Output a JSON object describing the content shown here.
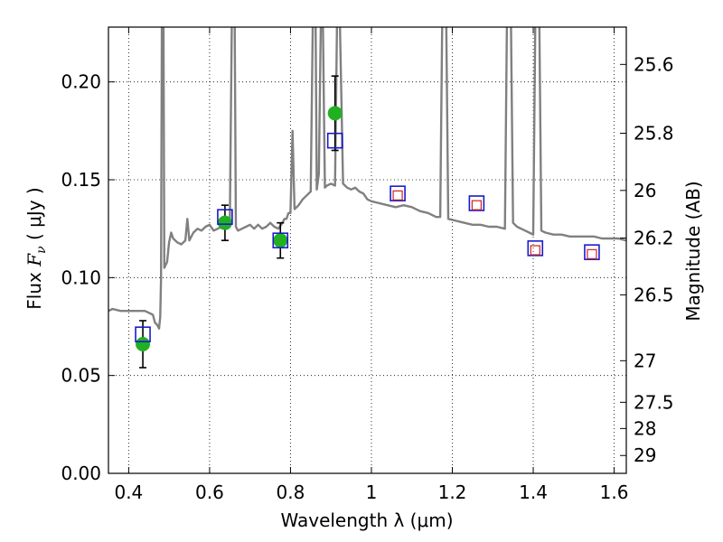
{
  "chart_data": {
    "type": "scatter",
    "xlabel": "Wavelength  λ (μm)",
    "ylabel_prefix": "Flux  ",
    "ylabel_symbol": "F",
    "ylabel_sub": "ν",
    "ylabel_suffix": "  ( μJy )",
    "y2label": "Magnitude (AB)",
    "xlim": [
      0.35,
      1.63
    ],
    "ylim": [
      0.0,
      0.228
    ],
    "grid": true,
    "x_ticks": [
      {
        "value": 0.4,
        "label": "0.4"
      },
      {
        "value": 0.6,
        "label": "0.6"
      },
      {
        "value": 0.8,
        "label": "0.8"
      },
      {
        "value": 1.0,
        "label": "1"
      },
      {
        "value": 1.2,
        "label": "1.2"
      },
      {
        "value": 1.4,
        "label": "1.4"
      },
      {
        "value": 1.6,
        "label": "1.6"
      }
    ],
    "y_ticks": [
      {
        "value": 0.0,
        "label": "0.00"
      },
      {
        "value": 0.05,
        "label": "0.05"
      },
      {
        "value": 0.1,
        "label": "0.10"
      },
      {
        "value": 0.15,
        "label": "0.15"
      },
      {
        "value": 0.2,
        "label": "0.20"
      }
    ],
    "mag_ticks": [
      {
        "mag": 25.6,
        "label": "25.6"
      },
      {
        "mag": 25.8,
        "label": "25.8"
      },
      {
        "mag": 26.0,
        "label": "26"
      },
      {
        "mag": 26.2,
        "label": "26.2"
      },
      {
        "mag": 26.5,
        "label": "26.5"
      },
      {
        "mag": 27.0,
        "label": "27"
      },
      {
        "mag": 27.5,
        "label": "27.5"
      },
      {
        "mag": 28.0,
        "label": "28"
      },
      {
        "mag": 29.0,
        "label": "29"
      }
    ],
    "sed_model": {
      "color": "#808080",
      "points": [
        [
          0.35,
          0.083
        ],
        [
          0.36,
          0.084
        ],
        [
          0.38,
          0.083
        ],
        [
          0.4,
          0.083
        ],
        [
          0.42,
          0.083
        ],
        [
          0.44,
          0.083
        ],
        [
          0.45,
          0.082
        ],
        [
          0.46,
          0.081
        ],
        [
          0.465,
          0.077
        ],
        [
          0.47,
          0.076
        ],
        [
          0.475,
          0.074
        ],
        [
          0.478,
          0.08
        ],
        [
          0.48,
          0.1
        ],
        [
          0.482,
          0.23
        ],
        [
          0.486,
          0.23
        ],
        [
          0.488,
          0.105
        ],
        [
          0.495,
          0.108
        ],
        [
          0.5,
          0.118
        ],
        [
          0.505,
          0.123
        ],
        [
          0.51,
          0.12
        ],
        [
          0.52,
          0.118
        ],
        [
          0.53,
          0.117
        ],
        [
          0.54,
          0.119
        ],
        [
          0.545,
          0.13
        ],
        [
          0.55,
          0.119
        ],
        [
          0.56,
          0.123
        ],
        [
          0.57,
          0.125
        ],
        [
          0.58,
          0.124
        ],
        [
          0.59,
          0.126
        ],
        [
          0.6,
          0.127
        ],
        [
          0.61,
          0.124
        ],
        [
          0.62,
          0.125
        ],
        [
          0.63,
          0.126
        ],
        [
          0.64,
          0.127
        ],
        [
          0.645,
          0.129
        ],
        [
          0.65,
          0.128
        ],
        [
          0.655,
          0.23
        ],
        [
          0.662,
          0.23
        ],
        [
          0.665,
          0.126
        ],
        [
          0.67,
          0.124
        ],
        [
          0.68,
          0.125
        ],
        [
          0.69,
          0.126
        ],
        [
          0.7,
          0.127
        ],
        [
          0.71,
          0.125
        ],
        [
          0.72,
          0.127
        ],
        [
          0.73,
          0.125
        ],
        [
          0.74,
          0.126
        ],
        [
          0.75,
          0.128
        ],
        [
          0.76,
          0.126
        ],
        [
          0.77,
          0.125
        ],
        [
          0.78,
          0.128
        ],
        [
          0.785,
          0.13
        ],
        [
          0.79,
          0.13
        ],
        [
          0.795,
          0.133
        ],
        [
          0.8,
          0.133
        ],
        [
          0.805,
          0.175
        ],
        [
          0.81,
          0.135
        ],
        [
          0.82,
          0.137
        ],
        [
          0.83,
          0.14
        ],
        [
          0.84,
          0.142
        ],
        [
          0.85,
          0.144
        ],
        [
          0.855,
          0.23
        ],
        [
          0.862,
          0.23
        ],
        [
          0.865,
          0.145
        ],
        [
          0.87,
          0.153
        ],
        [
          0.875,
          0.23
        ],
        [
          0.88,
          0.23
        ],
        [
          0.885,
          0.146
        ],
        [
          0.89,
          0.147
        ],
        [
          0.9,
          0.148
        ],
        [
          0.91,
          0.147
        ],
        [
          0.915,
          0.23
        ],
        [
          0.922,
          0.23
        ],
        [
          0.93,
          0.148
        ],
        [
          0.94,
          0.146
        ],
        [
          0.95,
          0.145
        ],
        [
          0.96,
          0.146
        ],
        [
          0.97,
          0.144
        ],
        [
          0.98,
          0.143
        ],
        [
          0.99,
          0.14
        ],
        [
          1.0,
          0.139
        ],
        [
          1.02,
          0.138
        ],
        [
          1.04,
          0.137
        ],
        [
          1.06,
          0.136
        ],
        [
          1.08,
          0.137
        ],
        [
          1.1,
          0.136
        ],
        [
          1.12,
          0.134
        ],
        [
          1.14,
          0.133
        ],
        [
          1.16,
          0.131
        ],
        [
          1.17,
          0.131
        ],
        [
          1.175,
          0.23
        ],
        [
          1.185,
          0.23
        ],
        [
          1.19,
          0.13
        ],
        [
          1.21,
          0.129
        ],
        [
          1.23,
          0.128
        ],
        [
          1.25,
          0.127
        ],
        [
          1.27,
          0.127
        ],
        [
          1.29,
          0.126
        ],
        [
          1.31,
          0.126
        ],
        [
          1.33,
          0.125
        ],
        [
          1.335,
          0.23
        ],
        [
          1.345,
          0.23
        ],
        [
          1.35,
          0.128
        ],
        [
          1.36,
          0.126
        ],
        [
          1.37,
          0.125
        ],
        [
          1.38,
          0.124
        ],
        [
          1.39,
          0.123
        ],
        [
          1.4,
          0.122
        ],
        [
          1.405,
          0.23
        ],
        [
          1.415,
          0.23
        ],
        [
          1.42,
          0.124
        ],
        [
          1.43,
          0.123
        ],
        [
          1.45,
          0.122
        ],
        [
          1.47,
          0.122
        ],
        [
          1.49,
          0.121
        ],
        [
          1.51,
          0.121
        ],
        [
          1.53,
          0.121
        ],
        [
          1.55,
          0.121
        ],
        [
          1.57,
          0.12
        ],
        [
          1.59,
          0.12
        ],
        [
          1.61,
          0.12
        ],
        [
          1.63,
          0.119
        ]
      ]
    },
    "observed": {
      "color": "#22b022",
      "points": [
        {
          "x": 0.435,
          "y": 0.066,
          "err": 0.012
        },
        {
          "x": 0.638,
          "y": 0.128,
          "err": 0.009
        },
        {
          "x": 0.775,
          "y": 0.119,
          "err": 0.009
        },
        {
          "x": 0.91,
          "y": 0.184,
          "err": 0.019
        }
      ]
    },
    "model_photometry": {
      "color": "#1a1acc",
      "points": [
        {
          "x": 0.435,
          "y": 0.071
        },
        {
          "x": 0.638,
          "y": 0.131
        },
        {
          "x": 0.775,
          "y": 0.119
        },
        {
          "x": 0.91,
          "y": 0.17
        },
        {
          "x": 1.065,
          "y": 0.143
        },
        {
          "x": 1.26,
          "y": 0.138
        },
        {
          "x": 1.405,
          "y": 0.115
        },
        {
          "x": 1.545,
          "y": 0.113
        }
      ]
    },
    "upper_limit_photometry": {
      "color": "#cc2222",
      "points": [
        {
          "x": 1.065,
          "y": 0.142
        },
        {
          "x": 1.26,
          "y": 0.137
        },
        {
          "x": 1.405,
          "y": 0.114
        },
        {
          "x": 1.545,
          "y": 0.112
        }
      ]
    }
  }
}
